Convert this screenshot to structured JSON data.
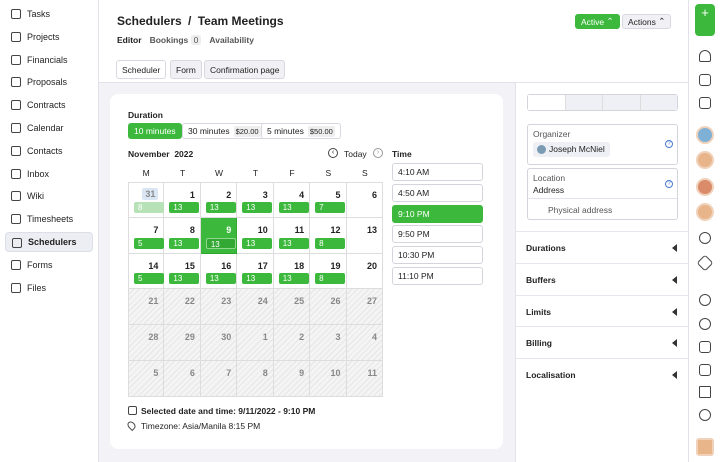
{
  "sidebar": {
    "items": [
      "Tasks",
      "Projects",
      "Financials",
      "Proposals",
      "Contracts",
      "Calendar",
      "Contacts",
      "Inbox",
      "Wiki",
      "Timesheets",
      "Schedulers",
      "Forms",
      "Files"
    ]
  },
  "header": {
    "title": "Schedulers",
    "separator": "/",
    "subtitle": "Team Meetings",
    "tabs": [
      {
        "label": "Editor"
      },
      {
        "label": "Bookings",
        "count": "0"
      },
      {
        "label": "Availability"
      }
    ],
    "status": "Active",
    "actions": "Actions"
  },
  "subtabs": [
    "Scheduler",
    "Form",
    "Confirmation page"
  ],
  "duration": {
    "label": "Duration",
    "options": [
      {
        "label": "10 minutes"
      },
      {
        "label": "30 minutes",
        "price": "$20.00"
      },
      {
        "label": "5 minutes",
        "price": "$50.00"
      }
    ]
  },
  "calendar": {
    "month": "November",
    "year": "2022",
    "today": "Today",
    "weekdays": [
      "M",
      "T",
      "W",
      "T",
      "F",
      "S",
      "S"
    ],
    "weeks": [
      [
        {
          "day": "31",
          "slots": "8"
        },
        {
          "day": "1",
          "slots": "13"
        },
        {
          "day": "2",
          "slots": "13"
        },
        {
          "day": "3",
          "slots": "13"
        },
        {
          "day": "4",
          "slots": "13"
        },
        {
          "day": "5",
          "slots": "7"
        },
        {
          "day": "6"
        }
      ],
      [
        {
          "day": "7",
          "slots": "5"
        },
        {
          "day": "8",
          "slots": "13"
        },
        {
          "day": "9",
          "slots": "13"
        },
        {
          "day": "10",
          "slots": "13"
        },
        {
          "day": "11",
          "slots": "13"
        },
        {
          "day": "12",
          "slots": "8"
        },
        {
          "day": "13"
        }
      ],
      [
        {
          "day": "14",
          "slots": "5"
        },
        {
          "day": "15",
          "slots": "13"
        },
        {
          "day": "16",
          "slots": "13"
        },
        {
          "day": "17",
          "slots": "13"
        },
        {
          "day": "18",
          "slots": "13"
        },
        {
          "day": "19",
          "slots": "8"
        },
        {
          "day": "20"
        }
      ],
      [
        {
          "day": "21"
        },
        {
          "day": "22"
        },
        {
          "day": "23"
        },
        {
          "day": "24"
        },
        {
          "day": "25"
        },
        {
          "day": "26"
        },
        {
          "day": "27"
        }
      ],
      [
        {
          "day": "28"
        },
        {
          "day": "29"
        },
        {
          "day": "30"
        },
        {
          "day": "1"
        },
        {
          "day": "2"
        },
        {
          "day": "3"
        },
        {
          "day": "4"
        }
      ],
      [
        {
          "day": "5"
        },
        {
          "day": "6"
        },
        {
          "day": "7"
        },
        {
          "day": "8"
        },
        {
          "day": "9"
        },
        {
          "day": "10"
        },
        {
          "day": "11"
        }
      ]
    ]
  },
  "time": {
    "label": "Time",
    "slots": [
      "4:10 AM",
      "4:50 AM",
      "9:10 PM",
      "9:50 PM",
      "10:30 PM",
      "11:10 PM"
    ]
  },
  "selection": {
    "selected": "Selected date and time: 9/11/2022 - 9:10 PM",
    "timezone": "Timezone: Asia/Manila 8:15 PM"
  },
  "settings": {
    "organizer": {
      "label": "Organizer",
      "name": "Joseph McNiel"
    },
    "location": {
      "label": "Location",
      "value": "Address",
      "placeholder": "Physical address"
    },
    "sections": [
      "Durations",
      "Buffers",
      "Limits",
      "Billing",
      "Localisation"
    ]
  }
}
